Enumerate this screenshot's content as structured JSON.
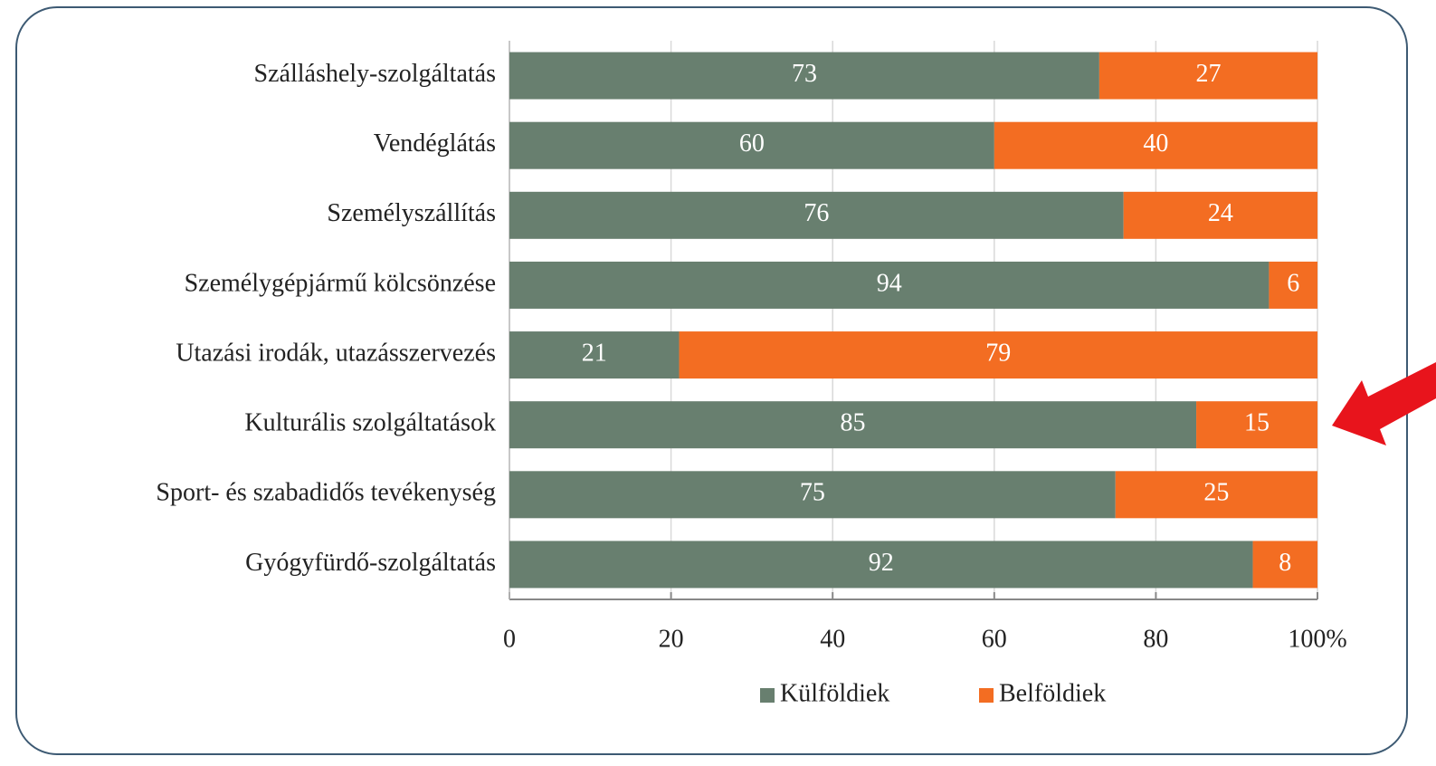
{
  "chart_data": {
    "type": "stacked_bar_horizontal",
    "categories": [
      "Szálláshely-szolgáltatás",
      "Vendéglátás",
      "Személyszállítás",
      "Személygépjármű kölcsönzése",
      "Utazási irodák, utazásszervezés",
      "Kulturális szolgáltatások",
      "Sport- és szabadidős tevékenység",
      "Gyógyfürdő-szolgáltatás"
    ],
    "series": [
      {
        "name": "Külföldiek",
        "color": "#687f6f",
        "values": [
          73,
          60,
          76,
          94,
          21,
          85,
          75,
          92
        ]
      },
      {
        "name": "Belföldiek",
        "color": "#f36d22",
        "values": [
          27,
          40,
          24,
          6,
          79,
          15,
          25,
          8
        ]
      }
    ],
    "xlim": [
      0,
      100
    ],
    "xticks": [
      0,
      20,
      40,
      60,
      80,
      {
        "value": 100,
        "label": "100%"
      }
    ],
    "grid": true,
    "legend": "bottom"
  }
}
